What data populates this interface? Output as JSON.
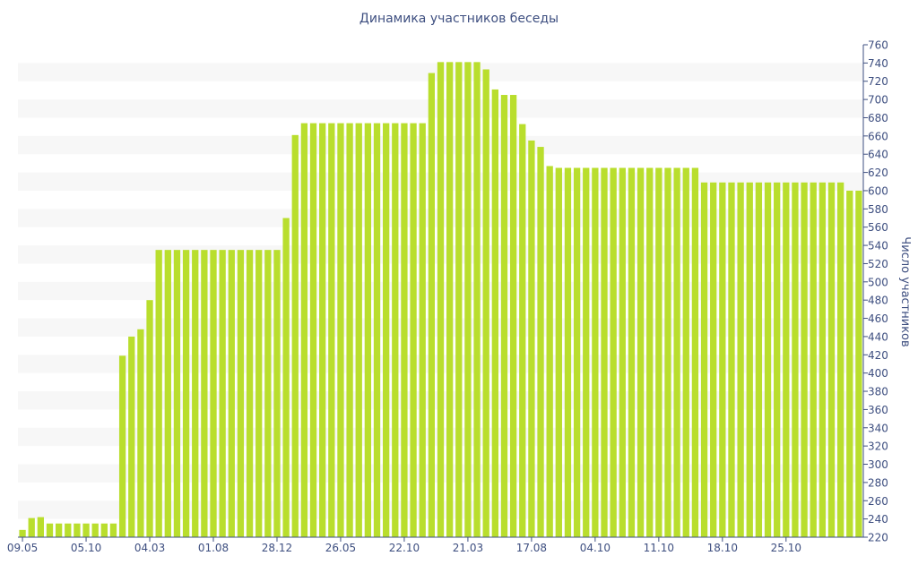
{
  "chart_data": {
    "type": "bar",
    "title": "Динамика участников беседы",
    "xlabel": "",
    "ylabel": "Число участников",
    "ylim": [
      220,
      760
    ],
    "y_ticks": [
      220,
      240,
      260,
      280,
      300,
      320,
      340,
      360,
      380,
      400,
      420,
      440,
      460,
      480,
      500,
      520,
      540,
      560,
      580,
      600,
      620,
      640,
      660,
      680,
      700,
      720,
      740,
      760
    ],
    "x_tick_labels": [
      {
        "index": 0,
        "label": "09.05"
      },
      {
        "index": 7,
        "label": "05.10"
      },
      {
        "index": 14,
        "label": "04.03"
      },
      {
        "index": 21,
        "label": "01.08"
      },
      {
        "index": 28,
        "label": "28.12"
      },
      {
        "index": 35,
        "label": "26.05"
      },
      {
        "index": 42,
        "label": "22.10"
      },
      {
        "index": 49,
        "label": "21.03"
      },
      {
        "index": 56,
        "label": "17.08"
      },
      {
        "index": 63,
        "label": "04.10"
      },
      {
        "index": 70,
        "label": "11.10"
      },
      {
        "index": 77,
        "label": "18.10"
      },
      {
        "index": 84,
        "label": "25.10"
      }
    ],
    "values": [
      228,
      241,
      242,
      235,
      235,
      235,
      235,
      235,
      235,
      235,
      235,
      419,
      440,
      448,
      480,
      535,
      535,
      535,
      535,
      535,
      535,
      535,
      535,
      535,
      535,
      535,
      535,
      535,
      535,
      570,
      661,
      674,
      674,
      674,
      674,
      674,
      674,
      674,
      674,
      674,
      674,
      674,
      674,
      674,
      674,
      729,
      741,
      741,
      741,
      741,
      741,
      733,
      711,
      705,
      705,
      673,
      655,
      648,
      627,
      625,
      625,
      625,
      625,
      625,
      625,
      625,
      625,
      625,
      625,
      625,
      625,
      625,
      625,
      625,
      625,
      609,
      609,
      609,
      609,
      609,
      609,
      609,
      609,
      609,
      609,
      609,
      609,
      609,
      609,
      609,
      609,
      600,
      600
    ],
    "grid": "horizontal bands",
    "y_axis_side": "right",
    "colors": {
      "bar": "#b9de2d",
      "band": "#f7f7f7",
      "axis": "#3e4f80",
      "title": "#3e4f80"
    }
  }
}
